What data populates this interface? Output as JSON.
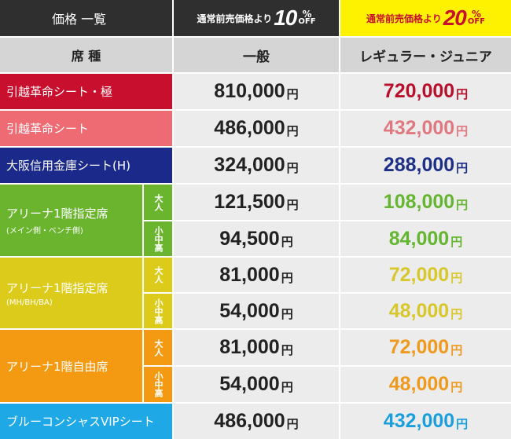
{
  "header": {
    "title": "価格 一覧",
    "seat_label": "席 種",
    "general_label": "一般",
    "regular_label": "レギュラー・ジュニア",
    "discount_general": {
      "prefix": "通常前売価格より",
      "number": "10",
      "percent": "%",
      "off": "OFF"
    },
    "discount_regular": {
      "prefix": "通常前売価格より",
      "number": "20",
      "percent": "%",
      "off": "OFF"
    }
  },
  "yen": "円",
  "rows": [
    {
      "name": "引越革命シート・極",
      "general": "810,000",
      "regular": "720,000"
    },
    {
      "name": "引越革命シート",
      "general": "486,000",
      "regular": "432,000"
    },
    {
      "name": "大阪信用金庫シート(H)",
      "general": "324,000",
      "regular": "288,000"
    },
    {
      "name": "アリーナ1階指定席",
      "note": "(メイン側・ベンチ側)",
      "adult_label": "大人",
      "child_label": "小中高",
      "adult_general": "121,500",
      "adult_regular": "108,000",
      "child_general": "94,500",
      "child_regular": "84,000"
    },
    {
      "name": "アリーナ1階指定席",
      "note": "(MH/BH/BA)",
      "adult_label": "大人",
      "child_label": "小中高",
      "adult_general": "81,000",
      "adult_regular": "72,000",
      "child_general": "54,000",
      "child_regular": "48,000"
    },
    {
      "name": "アリーナ1階自由席",
      "adult_label": "大人",
      "child_label": "小中高",
      "adult_general": "81,000",
      "adult_regular": "72,000",
      "child_general": "54,000",
      "child_regular": "48,000"
    },
    {
      "name": "ブルーコンシャスVIPシート",
      "general": "486,000",
      "regular": "432,000"
    }
  ],
  "colors": {
    "header_dark": "#2f2f2f",
    "header_grey": "#d5d5d5",
    "header_yellow": "#fff200",
    "price_bg": "#ececec",
    "general_text": "#222222",
    "discount_red": "#c8102e",
    "row_kiwami": "#c8102e",
    "row_kiwami_text": "#b8102a",
    "row_kakumei": "#ee6b73",
    "row_kakumei_text": "#e07880",
    "row_shinkin": "#1b2a8a",
    "row_shinkin_text": "#1e2f88",
    "row_arena_main": "#6ab42e",
    "row_arena_main_text": "#64b52f",
    "row_arena_mh": "#dccb1a",
    "row_arena_mh_text": "#d8c72b",
    "row_arena_free": "#f39a12",
    "row_arena_free_text": "#ee9a1f",
    "row_vip": "#1fa8e6",
    "row_vip_text": "#1a9fdc"
  }
}
